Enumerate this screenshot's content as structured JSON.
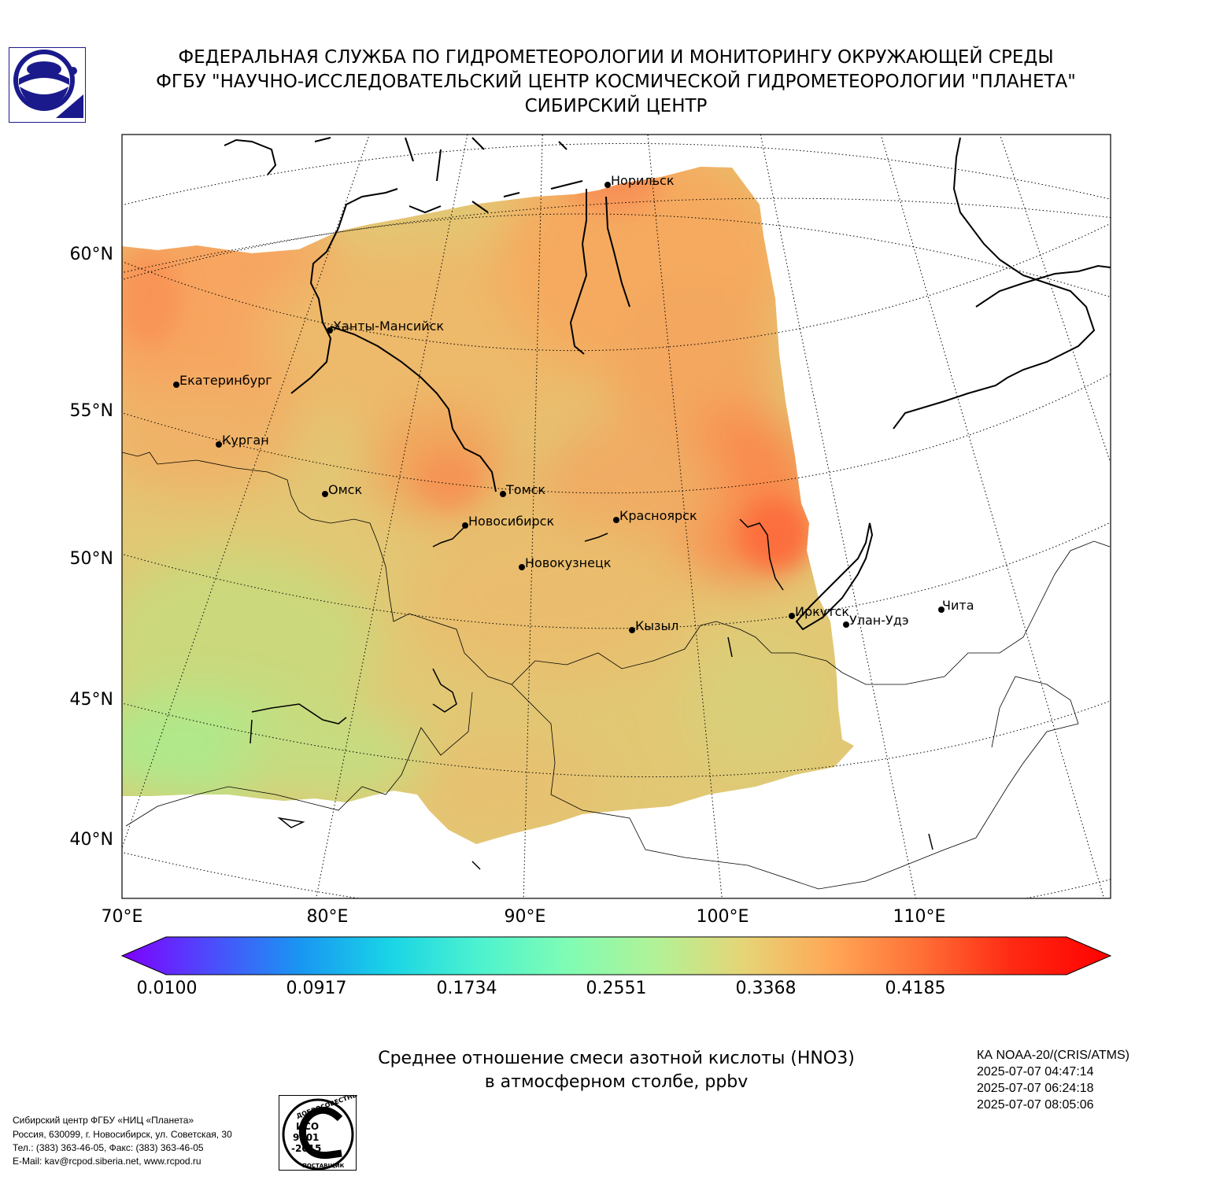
{
  "header": {
    "line1": "ФЕДЕРАЛЬНАЯ СЛУЖБА ПО ГИДРОМЕТЕОРОЛОГИИ И МОНИТОРИНГУ ОКРУЖАЮЩЕЙ СРЕДЫ",
    "line2": "ФГБУ \"НАУЧНО-ИССЛЕДОВАТЕЛЬСКИЙ ЦЕНТР КОСМИЧЕСКОЙ ГИДРОМЕТЕОРОЛОГИИ \"ПЛАНЕТА\"",
    "line3": "СИБИРСКИЙ ЦЕНТР"
  },
  "map": {
    "lat_labels": [
      "60°N",
      "55°N",
      "50°N",
      "45°N",
      "40°N"
    ],
    "lon_labels": [
      "70°E",
      "80°E",
      "90°E",
      "100°E",
      "110°E"
    ],
    "cities": [
      {
        "name": "Норильск"
      },
      {
        "name": "Ханты-Мансийск"
      },
      {
        "name": "Екатеринбург"
      },
      {
        "name": "Курган"
      },
      {
        "name": "Омск"
      },
      {
        "name": "Томск"
      },
      {
        "name": "Новосибирск"
      },
      {
        "name": "Красноярск"
      },
      {
        "name": "Новокузнецк"
      },
      {
        "name": "Иркутск"
      },
      {
        "name": "Улан-Удэ"
      },
      {
        "name": "Чита"
      },
      {
        "name": "Кызыл"
      }
    ]
  },
  "colorbar": {
    "tick_labels": [
      "0.0100",
      "0.0917",
      "0.1734",
      "0.2551",
      "0.3368",
      "0.4185"
    ],
    "range": [
      0.01,
      0.5002
    ],
    "colors": [
      "#7f00ff",
      "#4c4cfc",
      "#1996f2",
      "#19d4e6",
      "#4cf2cf",
      "#7ffcb4",
      "#b2f296",
      "#e6d476",
      "#ffa655",
      "#ff6e35",
      "#ff2a13",
      "#ff0000"
    ]
  },
  "product": {
    "title_line1": "Среднее отношение смеси азотной кислоты (HNO3)",
    "title_line2": "в атмосферном столбе, ppbv"
  },
  "satellite": {
    "name": "КА NOAA-20/(CRIS/ATMS)",
    "times": [
      "2025-07-07 04:47:14",
      "2025-07-07 06:24:18",
      "2025-07-07 08:05:06"
    ]
  },
  "contact": {
    "lines": [
      "Сибирский центр ФГБУ «НИЦ «Планета»",
      "Россия, 630099, г. Новосибирск, ул. Советская, 30",
      "Тел.: (383) 363-46-05, Факс: (383) 363-46-05",
      "E-Mail: kav@rcpod.siberia.net, www.rcpod.ru"
    ]
  },
  "iso_badge": {
    "top": "ДОБРОСОВЕСТНЫЙ",
    "l1": "ИСО",
    "l2": "9001",
    "l3": "-2015",
    "bottom": "ПОСТАВЩИК"
  }
}
